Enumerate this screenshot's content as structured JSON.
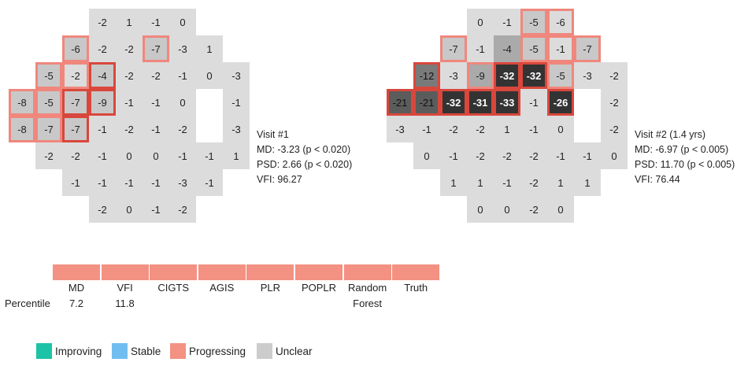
{
  "chart_data": [
    {
      "type": "heatmap",
      "title": "Visit #1",
      "values": [
        [
          null,
          null,
          null,
          -2,
          1,
          -1,
          0,
          null,
          null
        ],
        [
          null,
          null,
          -6,
          -2,
          -2,
          -7,
          -3,
          1,
          null
        ],
        [
          null,
          -5,
          -2,
          -4,
          -2,
          -2,
          -1,
          0,
          -3
        ],
        [
          -8,
          -5,
          -7,
          -9,
          -1,
          -1,
          0,
          null,
          -1
        ],
        [
          -8,
          -7,
          -7,
          -1,
          -2,
          -1,
          -2,
          null,
          -3
        ],
        [
          null,
          -2,
          -2,
          -1,
          0,
          0,
          -1,
          -1,
          1
        ],
        [
          null,
          null,
          -1,
          -1,
          -1,
          -1,
          -3,
          -1,
          null
        ],
        [
          null,
          null,
          null,
          -2,
          0,
          -1,
          -2,
          null,
          null
        ]
      ],
      "shade": [
        [
          0,
          0,
          0,
          0,
          0,
          0,
          0,
          0,
          0
        ],
        [
          0,
          0,
          1,
          0,
          0,
          1,
          0,
          0,
          0
        ],
        [
          0,
          1,
          0,
          1,
          0,
          0,
          0,
          0,
          0
        ],
        [
          1,
          1,
          1,
          1,
          0,
          0,
          0,
          0,
          0
        ],
        [
          1,
          1,
          1,
          0,
          0,
          0,
          0,
          0,
          0
        ],
        [
          0,
          0,
          0,
          0,
          0,
          0,
          0,
          0,
          0
        ],
        [
          0,
          0,
          0,
          0,
          0,
          0,
          0,
          0,
          0
        ],
        [
          0,
          0,
          0,
          0,
          0,
          0,
          0,
          0,
          0
        ]
      ],
      "progressing": [
        [
          0,
          0,
          0,
          0,
          0,
          0,
          0,
          0,
          0
        ],
        [
          0,
          0,
          1,
          0,
          0,
          1,
          0,
          0,
          0
        ],
        [
          0,
          1,
          1,
          2,
          0,
          0,
          0,
          0,
          0
        ],
        [
          1,
          1,
          2,
          2,
          0,
          0,
          0,
          0,
          0
        ],
        [
          1,
          1,
          2,
          0,
          0,
          0,
          0,
          0,
          0
        ],
        [
          0,
          0,
          0,
          0,
          0,
          0,
          0,
          0,
          0
        ],
        [
          0,
          0,
          0,
          0,
          0,
          0,
          0,
          0,
          0
        ],
        [
          0,
          0,
          0,
          0,
          0,
          0,
          0,
          0,
          0
        ]
      ]
    },
    {
      "type": "heatmap",
      "title": "Visit #2 (1.4 yrs)",
      "values": [
        [
          null,
          null,
          null,
          0,
          -1,
          -5,
          -6,
          null,
          null
        ],
        [
          null,
          null,
          -7,
          -1,
          -4,
          -5,
          -1,
          -7,
          null
        ],
        [
          null,
          -12,
          -3,
          -9,
          -32,
          -32,
          -5,
          -3,
          -2
        ],
        [
          -21,
          -21,
          -32,
          -31,
          -33,
          -1,
          -26,
          null,
          -2
        ],
        [
          -3,
          -1,
          -2,
          -2,
          1,
          -1,
          0,
          null,
          -2
        ],
        [
          null,
          0,
          -1,
          -2,
          -2,
          -2,
          -1,
          -1,
          0
        ],
        [
          null,
          null,
          1,
          1,
          -1,
          -2,
          1,
          1,
          null
        ],
        [
          null,
          null,
          null,
          0,
          0,
          -2,
          0,
          null,
          null
        ]
      ],
      "shade": [
        [
          0,
          0,
          0,
          0,
          0,
          1,
          0,
          0,
          0
        ],
        [
          0,
          0,
          1,
          0,
          2,
          1,
          0,
          1,
          0
        ],
        [
          0,
          3,
          0,
          2,
          5,
          5,
          1,
          0,
          0
        ],
        [
          4,
          4,
          5,
          5,
          5,
          0,
          5,
          0,
          0
        ],
        [
          0,
          0,
          0,
          0,
          0,
          0,
          0,
          0,
          0
        ],
        [
          0,
          0,
          0,
          0,
          0,
          0,
          0,
          0,
          0
        ],
        [
          0,
          0,
          0,
          0,
          0,
          0,
          0,
          0,
          0
        ],
        [
          0,
          0,
          0,
          0,
          0,
          0,
          0,
          0,
          0
        ]
      ],
      "progressing": [
        [
          0,
          0,
          0,
          0,
          0,
          1,
          1,
          0,
          0
        ],
        [
          0,
          0,
          1,
          0,
          0,
          1,
          1,
          1,
          0
        ],
        [
          0,
          2,
          0,
          1,
          2,
          2,
          1,
          0,
          0
        ],
        [
          2,
          2,
          2,
          2,
          2,
          0,
          2,
          0,
          0
        ],
        [
          0,
          0,
          0,
          0,
          0,
          0,
          0,
          0,
          0
        ],
        [
          0,
          0,
          0,
          0,
          0,
          0,
          0,
          0,
          0
        ],
        [
          0,
          0,
          0,
          0,
          0,
          0,
          0,
          0,
          0
        ],
        [
          0,
          0,
          0,
          0,
          0,
          0,
          0,
          0,
          0
        ]
      ]
    }
  ],
  "visit1": {
    "title": "Visit #1",
    "md": "MD: -3.23 (p < 0.020)",
    "psd": "PSD: 2.66 (p < 0.020)",
    "vfi": "VFI: 96.27"
  },
  "visit2": {
    "title": "Visit #2 (1.4 yrs)",
    "md": "MD: -6.97 (p < 0.005)",
    "psd": "PSD: 11.70 (p < 0.005)",
    "vfi": "VFI: 76.44"
  },
  "algorithms": {
    "labels": [
      "MD",
      "VFI",
      "CIGTS",
      "AGIS",
      "PLR",
      "POPLR",
      "Random\nForest",
      "Truth"
    ],
    "status": [
      "Progressing",
      "Progressing",
      "Progressing",
      "Progressing",
      "Progressing",
      "Progressing",
      "Progressing",
      "Progressing"
    ],
    "color": "#f39183",
    "percentile_label": "Percentile",
    "percentiles": [
      "7.2",
      "11.8",
      "",
      "",
      "",
      "",
      "",
      ""
    ]
  },
  "legend": [
    {
      "label": "Improving",
      "color": "#1cc3a7"
    },
    {
      "label": "Stable",
      "color": "#72bdf0"
    },
    {
      "label": "Progressing",
      "color": "#f39183"
    },
    {
      "label": "Unclear",
      "color": "#cccccc"
    }
  ]
}
